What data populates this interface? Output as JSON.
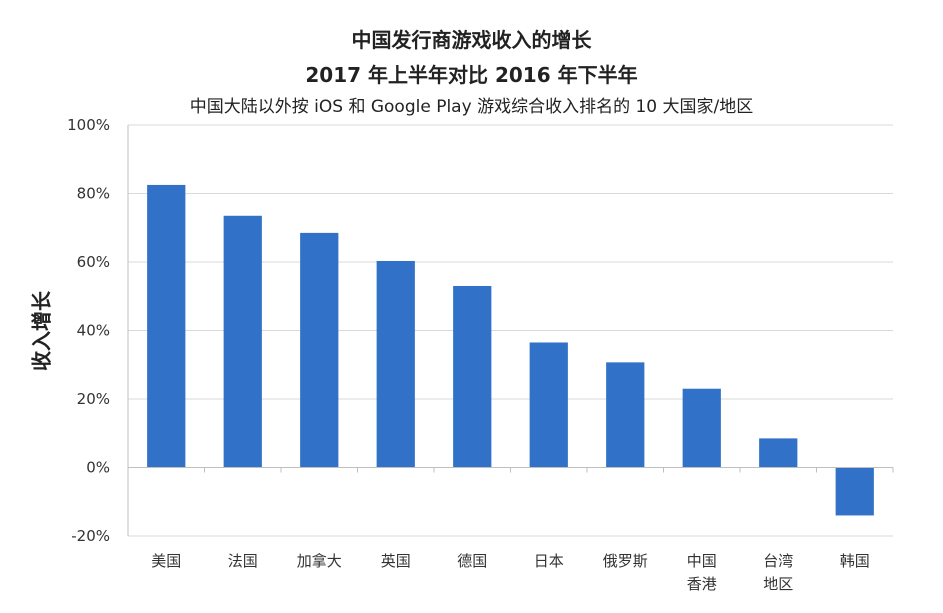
{
  "chart_data": {
    "type": "bar",
    "title": "中国发行商游戏收入的增长",
    "title_line2": "2017 年上半年对比 2016 年下半年",
    "subtitle": "中国大陆以外按 iOS 和 Google Play 游戏综合收入排名的 10 大国家/地区",
    "ylabel": "收入增长",
    "xlabel": "",
    "ylim": [
      -20,
      100
    ],
    "yticks": [
      100,
      80,
      60,
      40,
      20,
      0,
      -20
    ],
    "ytick_labels": [
      "100%",
      "80%",
      "60%",
      "40%",
      "20%",
      "0%",
      "-20%"
    ],
    "categories": [
      [
        "美国"
      ],
      [
        "法国"
      ],
      [
        "加拿大"
      ],
      [
        "英国"
      ],
      [
        "德国"
      ],
      [
        "日本"
      ],
      [
        "俄罗斯"
      ],
      [
        "中国",
        "香港"
      ],
      [
        "台湾",
        "地区"
      ],
      [
        "韩国"
      ]
    ],
    "values": [
      82.5,
      73.5,
      68.5,
      60.3,
      53,
      36.5,
      30.7,
      23,
      8.5,
      -14
    ],
    "bar_color": "#3172c8",
    "grid": true,
    "legend": "none"
  }
}
